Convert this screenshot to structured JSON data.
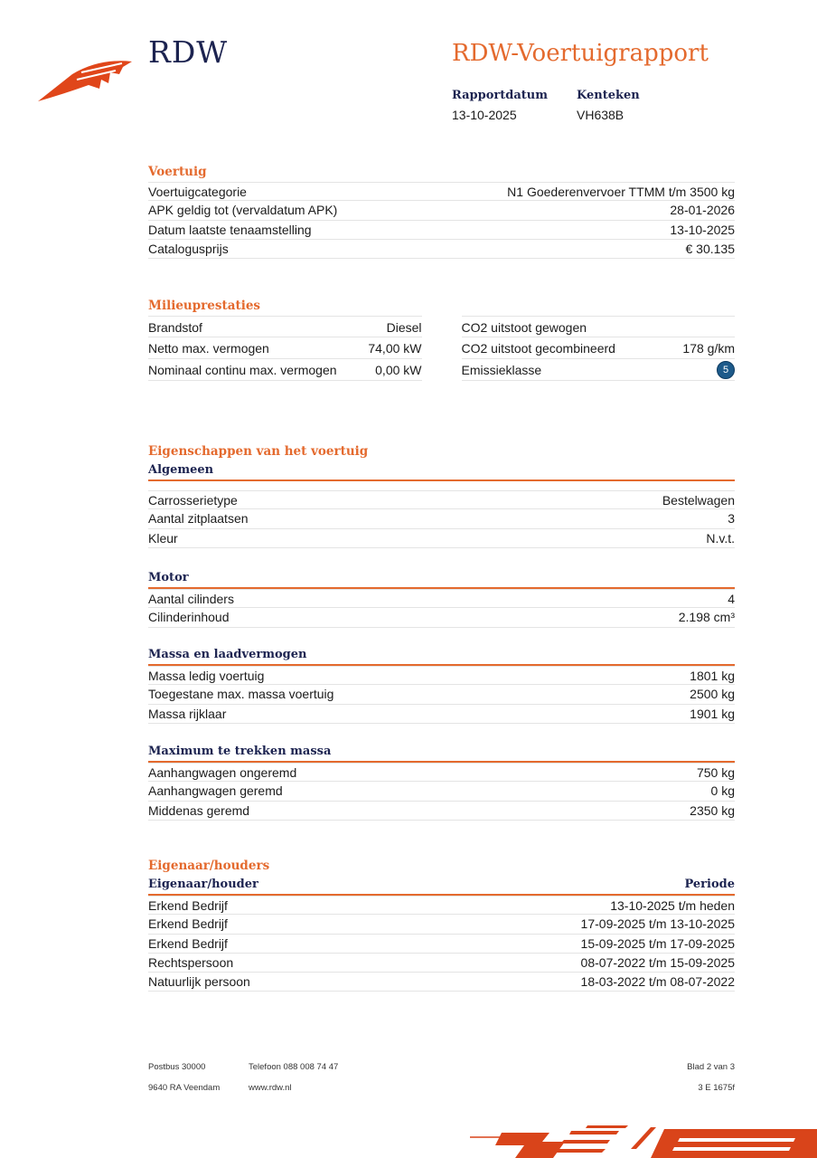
{
  "header": {
    "logo": "RDW",
    "title": "RDW-Voertuigrapport",
    "rapportdatum_label": "Rapportdatum",
    "rapportdatum": "13-10-2025",
    "kenteken_label": "Kenteken",
    "kenteken": "VH638B"
  },
  "voertuig": {
    "title": "Voertuig",
    "rows": [
      [
        "Voertuigcategorie",
        "N1 Goederenvervoer TTMM t/m 3500 kg"
      ],
      [
        "APK geldig tot (vervaldatum APK)",
        "28-01-2026"
      ],
      [
        "Datum laatste tenaamstelling",
        "13-10-2025"
      ],
      [
        "Catalogusprijs",
        "€ 30.135"
      ]
    ]
  },
  "milieu": {
    "title": "Milieuprestaties",
    "left": [
      [
        "Brandstof",
        "Diesel"
      ],
      [
        "Netto max. vermogen",
        "74,00 kW"
      ],
      [
        "Nominaal continu max. vermogen",
        "0,00 kW"
      ]
    ],
    "right": [
      [
        "CO2 uitstoot gewogen",
        ""
      ],
      [
        "CO2 uitstoot gecombineerd",
        "178 g/km"
      ],
      [
        "Emissieklasse",
        "5"
      ]
    ],
    "badge_color": "#1d5a8a"
  },
  "eigenschappen": {
    "title": "Eigenschappen van het voertuig",
    "algemeen": {
      "title": "Algemeen",
      "rows": [
        [
          "Carrosserietype",
          "Bestelwagen"
        ],
        [
          "Aantal zitplaatsen",
          "3"
        ],
        [
          "Kleur",
          "N.v.t."
        ]
      ]
    },
    "motor": {
      "title": "Motor",
      "rows": [
        [
          "Aantal cilinders",
          "4"
        ],
        [
          "Cilinderinhoud",
          "2.198 cm³"
        ]
      ]
    },
    "massa": {
      "title": "Massa en laadvermogen",
      "rows": [
        [
          "Massa ledig voertuig",
          "1801 kg"
        ],
        [
          "Toegestane max. massa voertuig",
          "2500 kg"
        ],
        [
          "Massa rijklaar",
          "1901 kg"
        ]
      ]
    },
    "trekken": {
      "title": "Maximum te trekken massa",
      "rows": [
        [
          "Aanhangwagen ongeremd",
          "750 kg"
        ],
        [
          "Aanhangwagen geremd",
          "0 kg"
        ],
        [
          "Middenas geremd",
          "2350 kg"
        ]
      ]
    }
  },
  "eigenaar": {
    "title": "Eigenaar/houders",
    "col1": "Eigenaar/houder",
    "col2": "Periode",
    "rows": [
      [
        "Erkend Bedrijf",
        "13-10-2025 t/m heden"
      ],
      [
        "Erkend Bedrijf",
        "17-09-2025 t/m 13-10-2025"
      ],
      [
        "Erkend Bedrijf",
        "15-09-2025 t/m 17-09-2025"
      ],
      [
        "Rechtspersoon",
        "08-07-2022 t/m 15-09-2025"
      ],
      [
        "Natuurlijk persoon",
        "18-03-2022 t/m 08-07-2022"
      ]
    ]
  },
  "footer": {
    "postbus": "Postbus 30000",
    "plaats": "9640 RA Veendam",
    "telefoon": "Telefoon 088 008 74 47",
    "web": "www.rdw.nl",
    "blad": "Blad 2 van 3",
    "code": "3 E 1675f"
  },
  "colors": {
    "accent": "#e46a2e",
    "navy": "#1c2350"
  }
}
